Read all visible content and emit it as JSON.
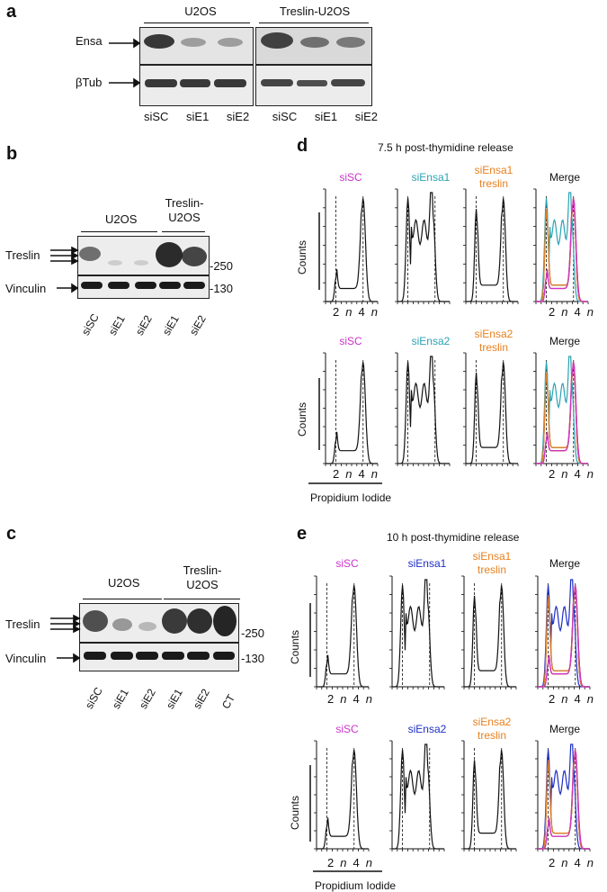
{
  "panel_a": {
    "label": "a",
    "groups": [
      "U2OS",
      "Treslin-U2OS"
    ],
    "rows": [
      "Ensa",
      "βTub"
    ],
    "lanes": [
      "siSC",
      "siE1",
      "siE2",
      "siSC",
      "siE1",
      "siE2"
    ]
  },
  "panel_b": {
    "label": "b",
    "groups": [
      "U2OS",
      "Treslin-",
      "U2OS"
    ],
    "rows": [
      "Treslin",
      "Vinculin"
    ],
    "markers": [
      "-250",
      "-130"
    ],
    "lanes": [
      "siSC",
      "siE1",
      "siE2",
      "siE1",
      "siE2"
    ]
  },
  "panel_c": {
    "label": "c",
    "groups": [
      "U2OS",
      "Treslin-",
      "U2OS"
    ],
    "rows": [
      "Treslin",
      "Vinculin"
    ],
    "markers": [
      "-250",
      "-130"
    ],
    "lanes": [
      "siSC",
      "siE1",
      "siE2",
      "siE1",
      "siE2",
      "CT"
    ]
  },
  "panel_d": {
    "label": "d",
    "title": "7.5 h post-thymidine release",
    "row1": [
      "siSC",
      "siEnsa1",
      "siEnsa1",
      "treslin",
      "Merge"
    ],
    "row2": [
      "siSC",
      "siEnsa2",
      "siEnsa2",
      "treslin",
      "Merge"
    ],
    "ylabel": "Counts",
    "xticks": [
      "2",
      "n",
      "4",
      "n"
    ],
    "xlabel": "Propidium Iodide"
  },
  "panel_e": {
    "label": "e",
    "title": "10 h post-thymidine release",
    "row1": [
      "siSC",
      "siEnsa1",
      "siEnsa1",
      "treslin",
      "Merge"
    ],
    "row2": [
      "siSC",
      "siEnsa2",
      "siEnsa2",
      "treslin",
      "Merge"
    ],
    "ylabel": "Counts",
    "xticks": [
      "2",
      "n",
      "4",
      "n"
    ],
    "xlabel": "Propidium Iodide"
  },
  "colors": {
    "siSC": "#cc33cc",
    "siEnsa_d": "#2aa3b4",
    "siEnsa_e": "#1d2fc4",
    "treslin": "#e8801e",
    "red": "#d0281e"
  }
}
